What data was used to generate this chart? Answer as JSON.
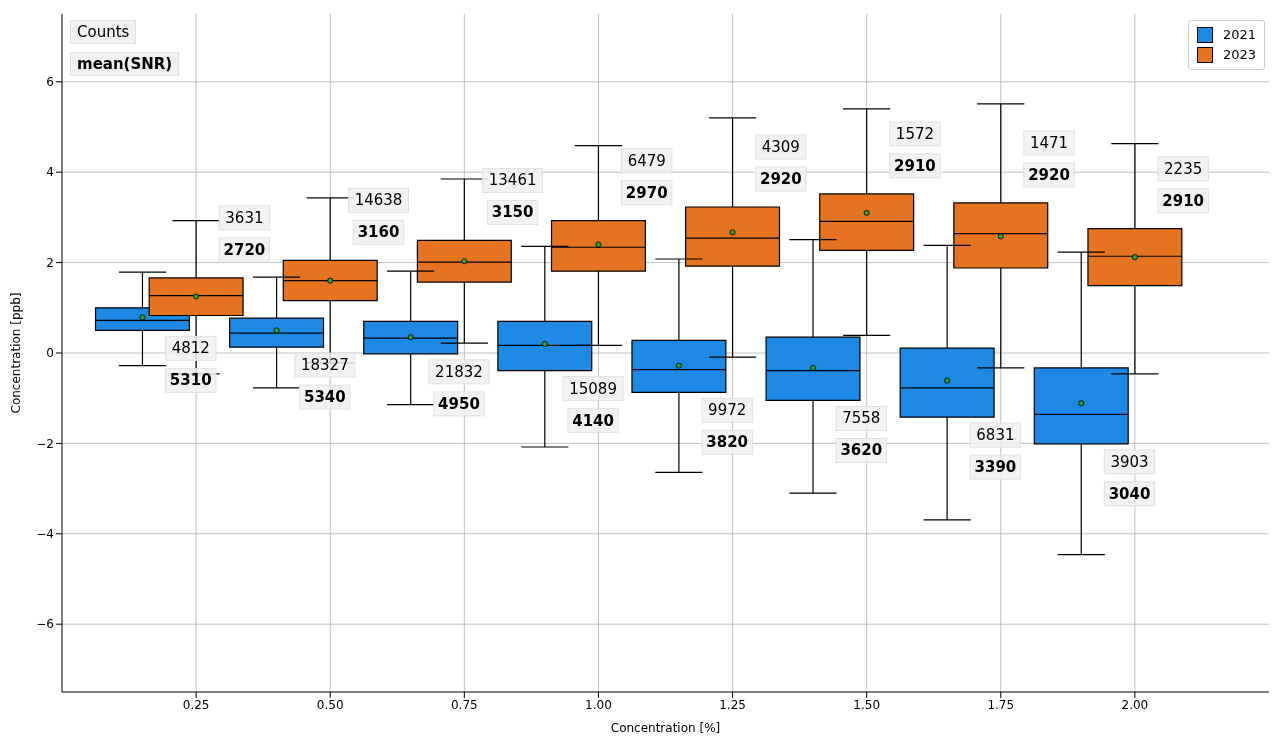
{
  "chart_data": {
    "type": "box",
    "xlabel": "Concentration [%]",
    "ylabel": "Concentration [ppb]",
    "xlim": [
      0,
      2.25
    ],
    "xticks": [
      {
        "value": 0.25,
        "label": "0.25"
      },
      {
        "value": 0.5,
        "label": "0.50"
      },
      {
        "value": 0.75,
        "label": "0.75"
      },
      {
        "value": 1,
        "label": "1.00"
      },
      {
        "value": 1.25,
        "label": "1.25"
      },
      {
        "value": 1.5,
        "label": "1.50"
      },
      {
        "value": 1.75,
        "label": "1.75"
      },
      {
        "value": 2,
        "label": "2.00"
      }
    ],
    "ylim": [
      -7.5,
      7.5
    ],
    "yticks": [
      {
        "value": -6,
        "label": "−6"
      },
      {
        "value": -4,
        "label": "−4"
      },
      {
        "value": -2,
        "label": "−2"
      },
      0,
      2,
      4,
      6
    ],
    "grid": true,
    "legend": "top right",
    "series": [
      {
        "name": "2021",
        "color": "#1e88e5",
        "x": [
          0.15,
          0.4,
          0.65,
          0.9,
          1.15,
          1.4,
          1.65,
          1.9
        ],
        "boxes": [
          {
            "low": -0.28,
            "q1": 0.5,
            "median": 0.72,
            "q3": 1.0,
            "high": 1.79,
            "mean": 0.79
          },
          {
            "low": -0.77,
            "q1": 0.13,
            "median": 0.44,
            "q3": 0.77,
            "high": 1.68,
            "mean": 0.5
          },
          {
            "low": -1.14,
            "q1": -0.02,
            "median": 0.33,
            "q3": 0.7,
            "high": 1.81,
            "mean": 0.35
          },
          {
            "low": -2.08,
            "q1": -0.39,
            "median": 0.17,
            "q3": 0.7,
            "high": 2.36,
            "mean": 0.2
          },
          {
            "low": -2.64,
            "q1": -0.87,
            "median": -0.37,
            "q3": 0.28,
            "high": 2.08,
            "mean": -0.28
          },
          {
            "low": -3.1,
            "q1": -1.05,
            "median": -0.39,
            "q3": 0.35,
            "high": 2.51,
            "mean": -0.33
          },
          {
            "low": -3.69,
            "q1": -1.42,
            "median": -0.77,
            "q3": 0.11,
            "high": 2.38,
            "mean": -0.61
          },
          {
            "low": -4.46,
            "q1": -2.01,
            "median": -1.36,
            "q3": -0.33,
            "high": 2.23,
            "mean": -1.11
          }
        ]
      },
      {
        "name": "2023",
        "color": "#e57320",
        "x": [
          0.25,
          0.5,
          0.75,
          1.0,
          1.25,
          1.5,
          1.75,
          2.0
        ],
        "boxes": [
          {
            "low": -0.46,
            "q1": 0.83,
            "median": 1.27,
            "q3": 1.66,
            "high": 2.93,
            "mean": 1.25
          },
          {
            "low": -0.22,
            "q1": 1.16,
            "median": 1.6,
            "q3": 2.05,
            "high": 3.43,
            "mean": 1.6
          },
          {
            "low": 0.22,
            "q1": 1.57,
            "median": 2.01,
            "q3": 2.49,
            "high": 3.85,
            "mean": 2.03
          },
          {
            "low": 0.17,
            "q1": 1.81,
            "median": 2.34,
            "q3": 2.93,
            "high": 4.59,
            "mean": 2.4
          },
          {
            "low": -0.09,
            "q1": 1.92,
            "median": 2.54,
            "q3": 3.23,
            "high": 5.2,
            "mean": 2.67
          },
          {
            "low": 0.39,
            "q1": 2.27,
            "median": 2.91,
            "q3": 3.52,
            "high": 5.4,
            "mean": 3.1
          },
          {
            "low": -0.33,
            "q1": 1.88,
            "median": 2.64,
            "q3": 3.32,
            "high": 5.51,
            "mean": 2.58
          },
          {
            "low": -0.46,
            "q1": 1.49,
            "median": 2.14,
            "q3": 2.75,
            "high": 4.63,
            "mean": 2.12
          }
        ]
      }
    ],
    "annotations": [
      "Counts",
      "mean(SNR)",
      "4812",
      "5310",
      "18327",
      "5340",
      "21832",
      "4950",
      "15089",
      "4140",
      "9972",
      "3820",
      "7558",
      "3620",
      "6831",
      "3390",
      "3903",
      "3040",
      "3631",
      "2720",
      "14638",
      "3160",
      "13461",
      "3150",
      "6479",
      "2970",
      "4309",
      "2920",
      "1572",
      "2910",
      "1471",
      "2920",
      "2235",
      "2910"
    ]
  }
}
